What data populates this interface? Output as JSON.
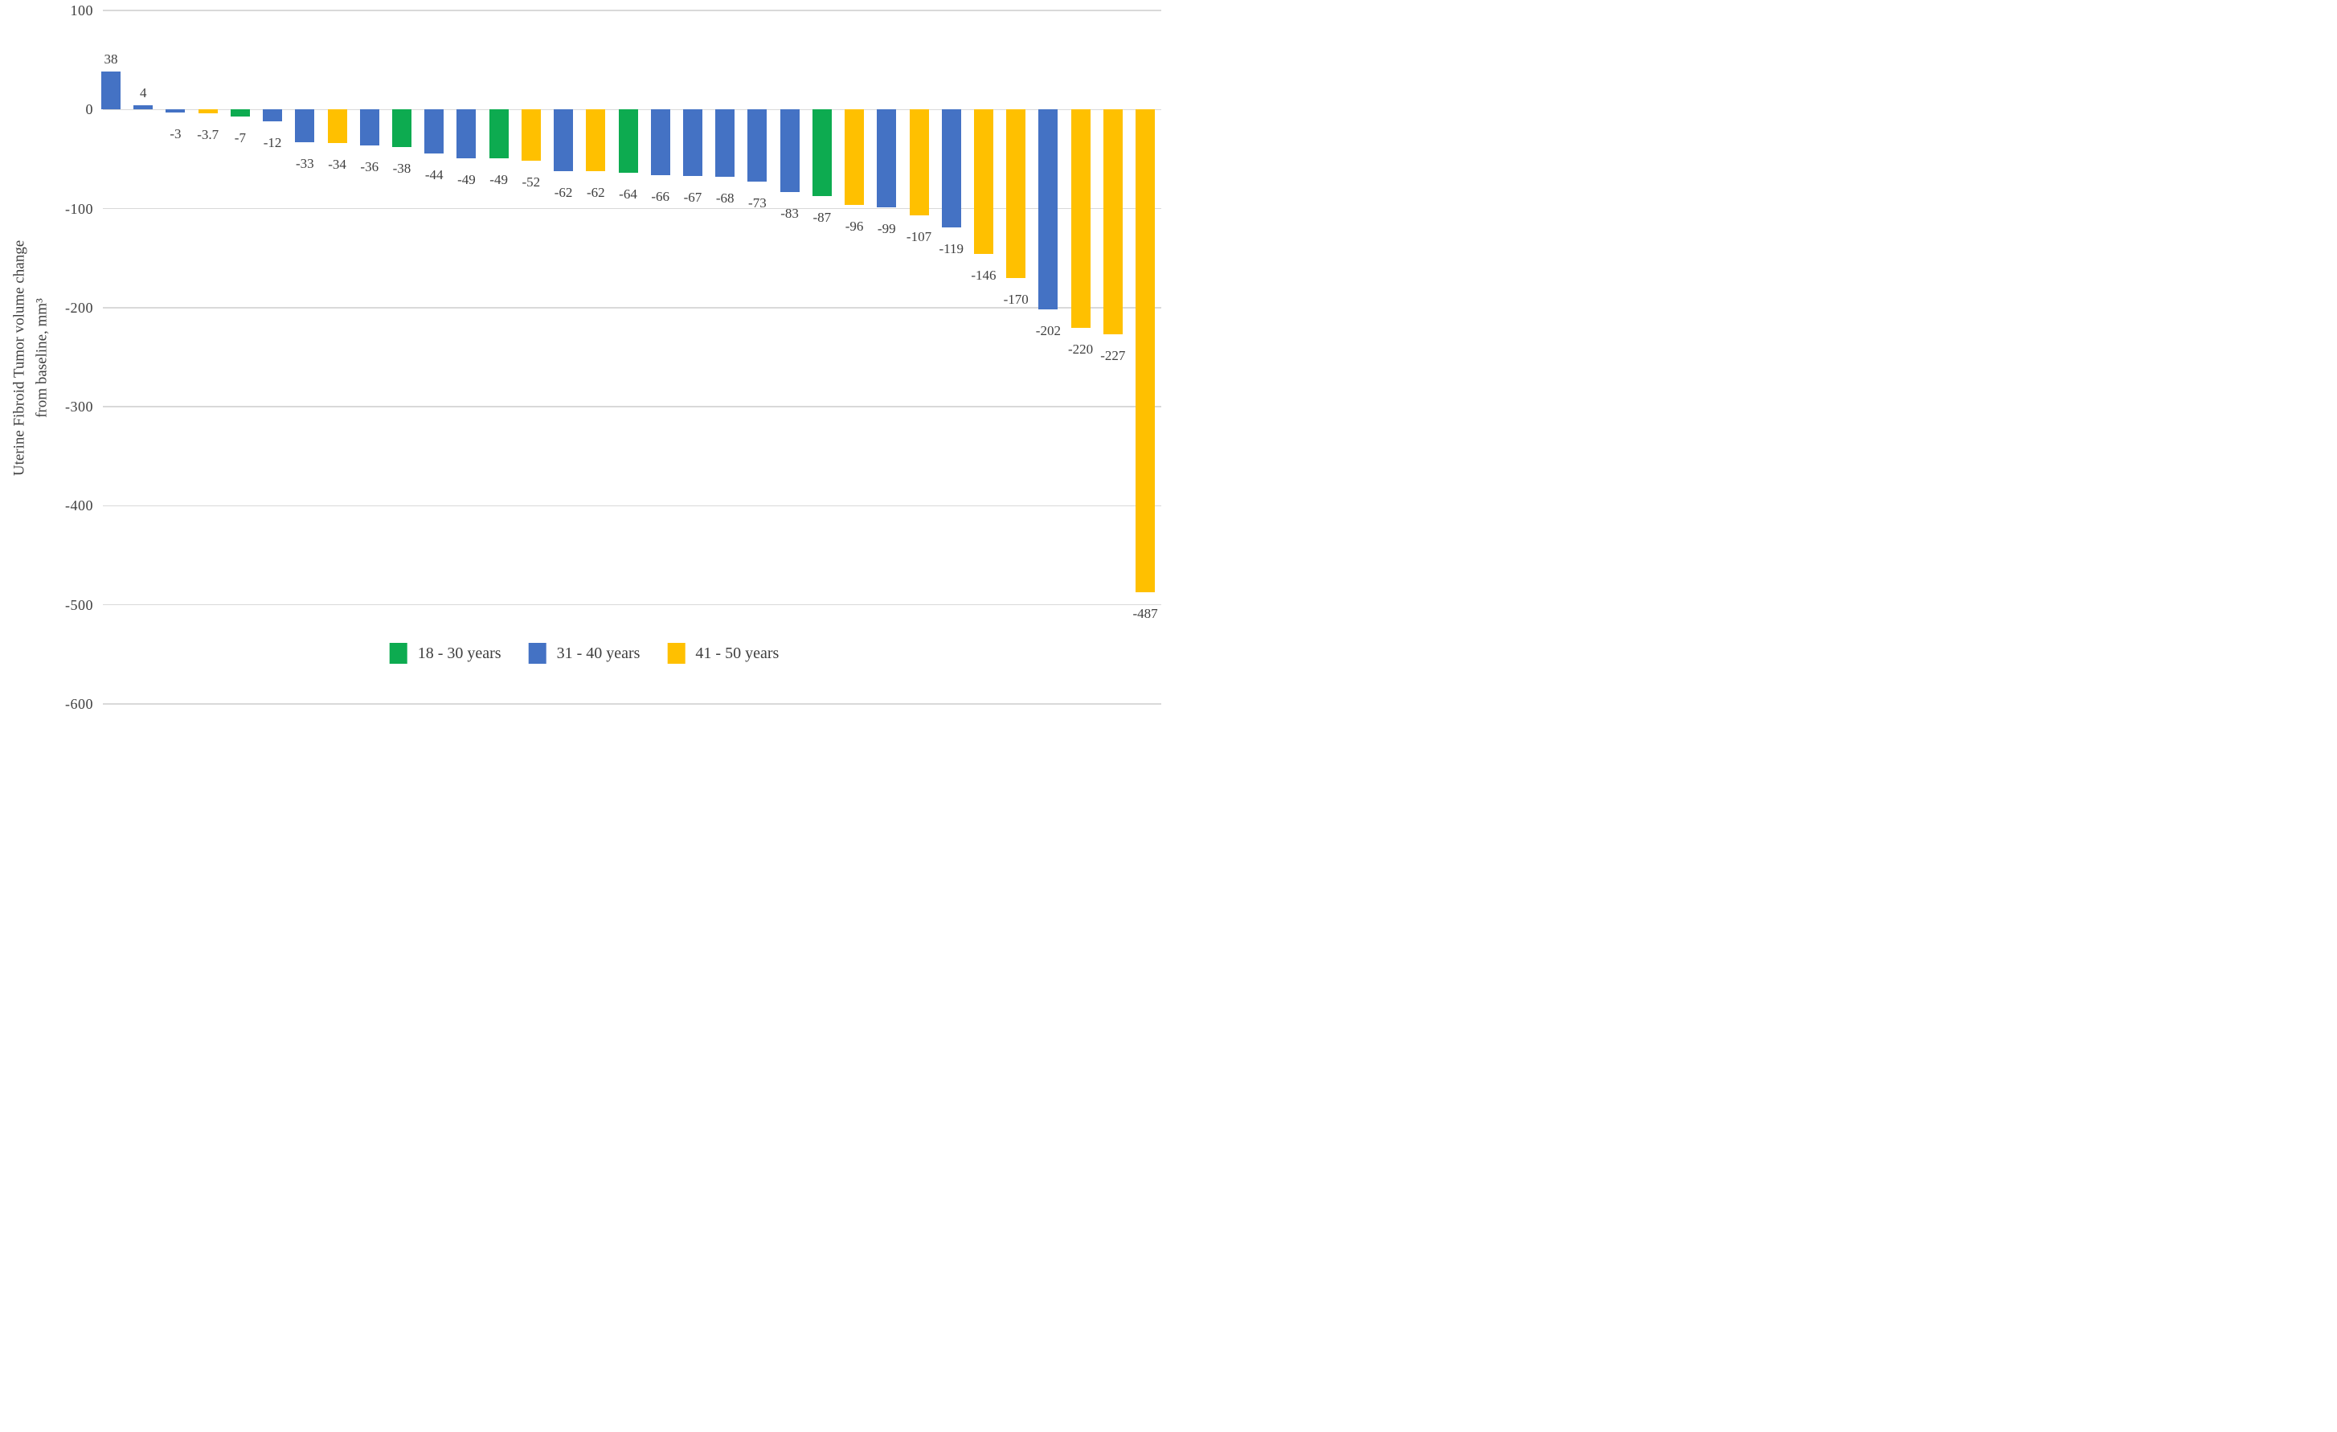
{
  "chart_data": {
    "type": "bar",
    "title": "",
    "xlabel": "",
    "ylabel_line1": "Uterine Fibroid Tumor volume change",
    "ylabel_line2": "from baseline, mm³",
    "ylim": [
      -600,
      100
    ],
    "yticks": [
      100,
      0,
      -100,
      -200,
      -300,
      -400,
      -500,
      -600
    ],
    "grid": "horizontal",
    "legend_position": "bottom-inside",
    "legend": [
      {
        "label": "18 - 30 years",
        "color": "#0DAB50"
      },
      {
        "label": "31 - 40 years",
        "color": "#4472C4"
      },
      {
        "label": "41 - 50 years",
        "color": "#FFC000"
      }
    ],
    "bars": [
      {
        "label": "38",
        "value": 38,
        "group": "31 - 40 years"
      },
      {
        "label": "4",
        "value": 4,
        "group": "31 - 40 years"
      },
      {
        "label": "-3",
        "value": -3,
        "group": "31 - 40 years"
      },
      {
        "label": "-3.7",
        "value": -3.7,
        "group": "41 - 50 years"
      },
      {
        "label": "-7",
        "value": -7,
        "group": "18 - 30 years"
      },
      {
        "label": "-12",
        "value": -12,
        "group": "31 - 40 years"
      },
      {
        "label": "-33",
        "value": -33,
        "group": "31 - 40 years"
      },
      {
        "label": "-34",
        "value": -34,
        "group": "41 - 50 years"
      },
      {
        "label": "-36",
        "value": -36,
        "group": "31 - 40 years"
      },
      {
        "label": "-38",
        "value": -38,
        "group": "18 - 30 years"
      },
      {
        "label": "-44",
        "value": -44,
        "group": "31 - 40 years"
      },
      {
        "label": "-49",
        "value": -49,
        "group": "31 - 40 years"
      },
      {
        "label": "-49",
        "value": -49,
        "group": "18 - 30 years"
      },
      {
        "label": "-52",
        "value": -52,
        "group": "41 - 50 years"
      },
      {
        "label": "-62",
        "value": -62,
        "group": "31 - 40 years"
      },
      {
        "label": "-62",
        "value": -62,
        "group": "41 - 50 years"
      },
      {
        "label": "-64",
        "value": -64,
        "group": "18 - 30 years"
      },
      {
        "label": "-66",
        "value": -66,
        "group": "31 - 40 years"
      },
      {
        "label": "-67",
        "value": -67,
        "group": "31 - 40 years"
      },
      {
        "label": "-68",
        "value": -68,
        "group": "31 - 40 years"
      },
      {
        "label": "-73",
        "value": -73,
        "group": "31 - 40 years"
      },
      {
        "label": "-83",
        "value": -83,
        "group": "31 - 40 years"
      },
      {
        "label": "-87",
        "value": -87,
        "group": "18 - 30 years"
      },
      {
        "label": "-96",
        "value": -96,
        "group": "41 - 50 years"
      },
      {
        "label": "-99",
        "value": -99,
        "group": "31 - 40 years"
      },
      {
        "label": "-107",
        "value": -107,
        "group": "41 - 50 years"
      },
      {
        "label": "-119",
        "value": -119,
        "group": "31 - 40 years"
      },
      {
        "label": "-146",
        "value": -146,
        "group": "41 - 50 years"
      },
      {
        "label": "-170",
        "value": -170,
        "group": "41 - 50 years"
      },
      {
        "label": "-202",
        "value": -202,
        "group": "31 - 40 years"
      },
      {
        "label": "-220",
        "value": -220,
        "group": "41 - 50 years"
      },
      {
        "label": "-227",
        "value": -227,
        "group": "41 - 50 years"
      },
      {
        "label": "-487",
        "value": -487,
        "group": "41 - 50 years"
      }
    ],
    "colors": {
      "gridline": "#D9D9D9",
      "text": "#3F3F3F",
      "background": "#FFFFFF"
    }
  }
}
